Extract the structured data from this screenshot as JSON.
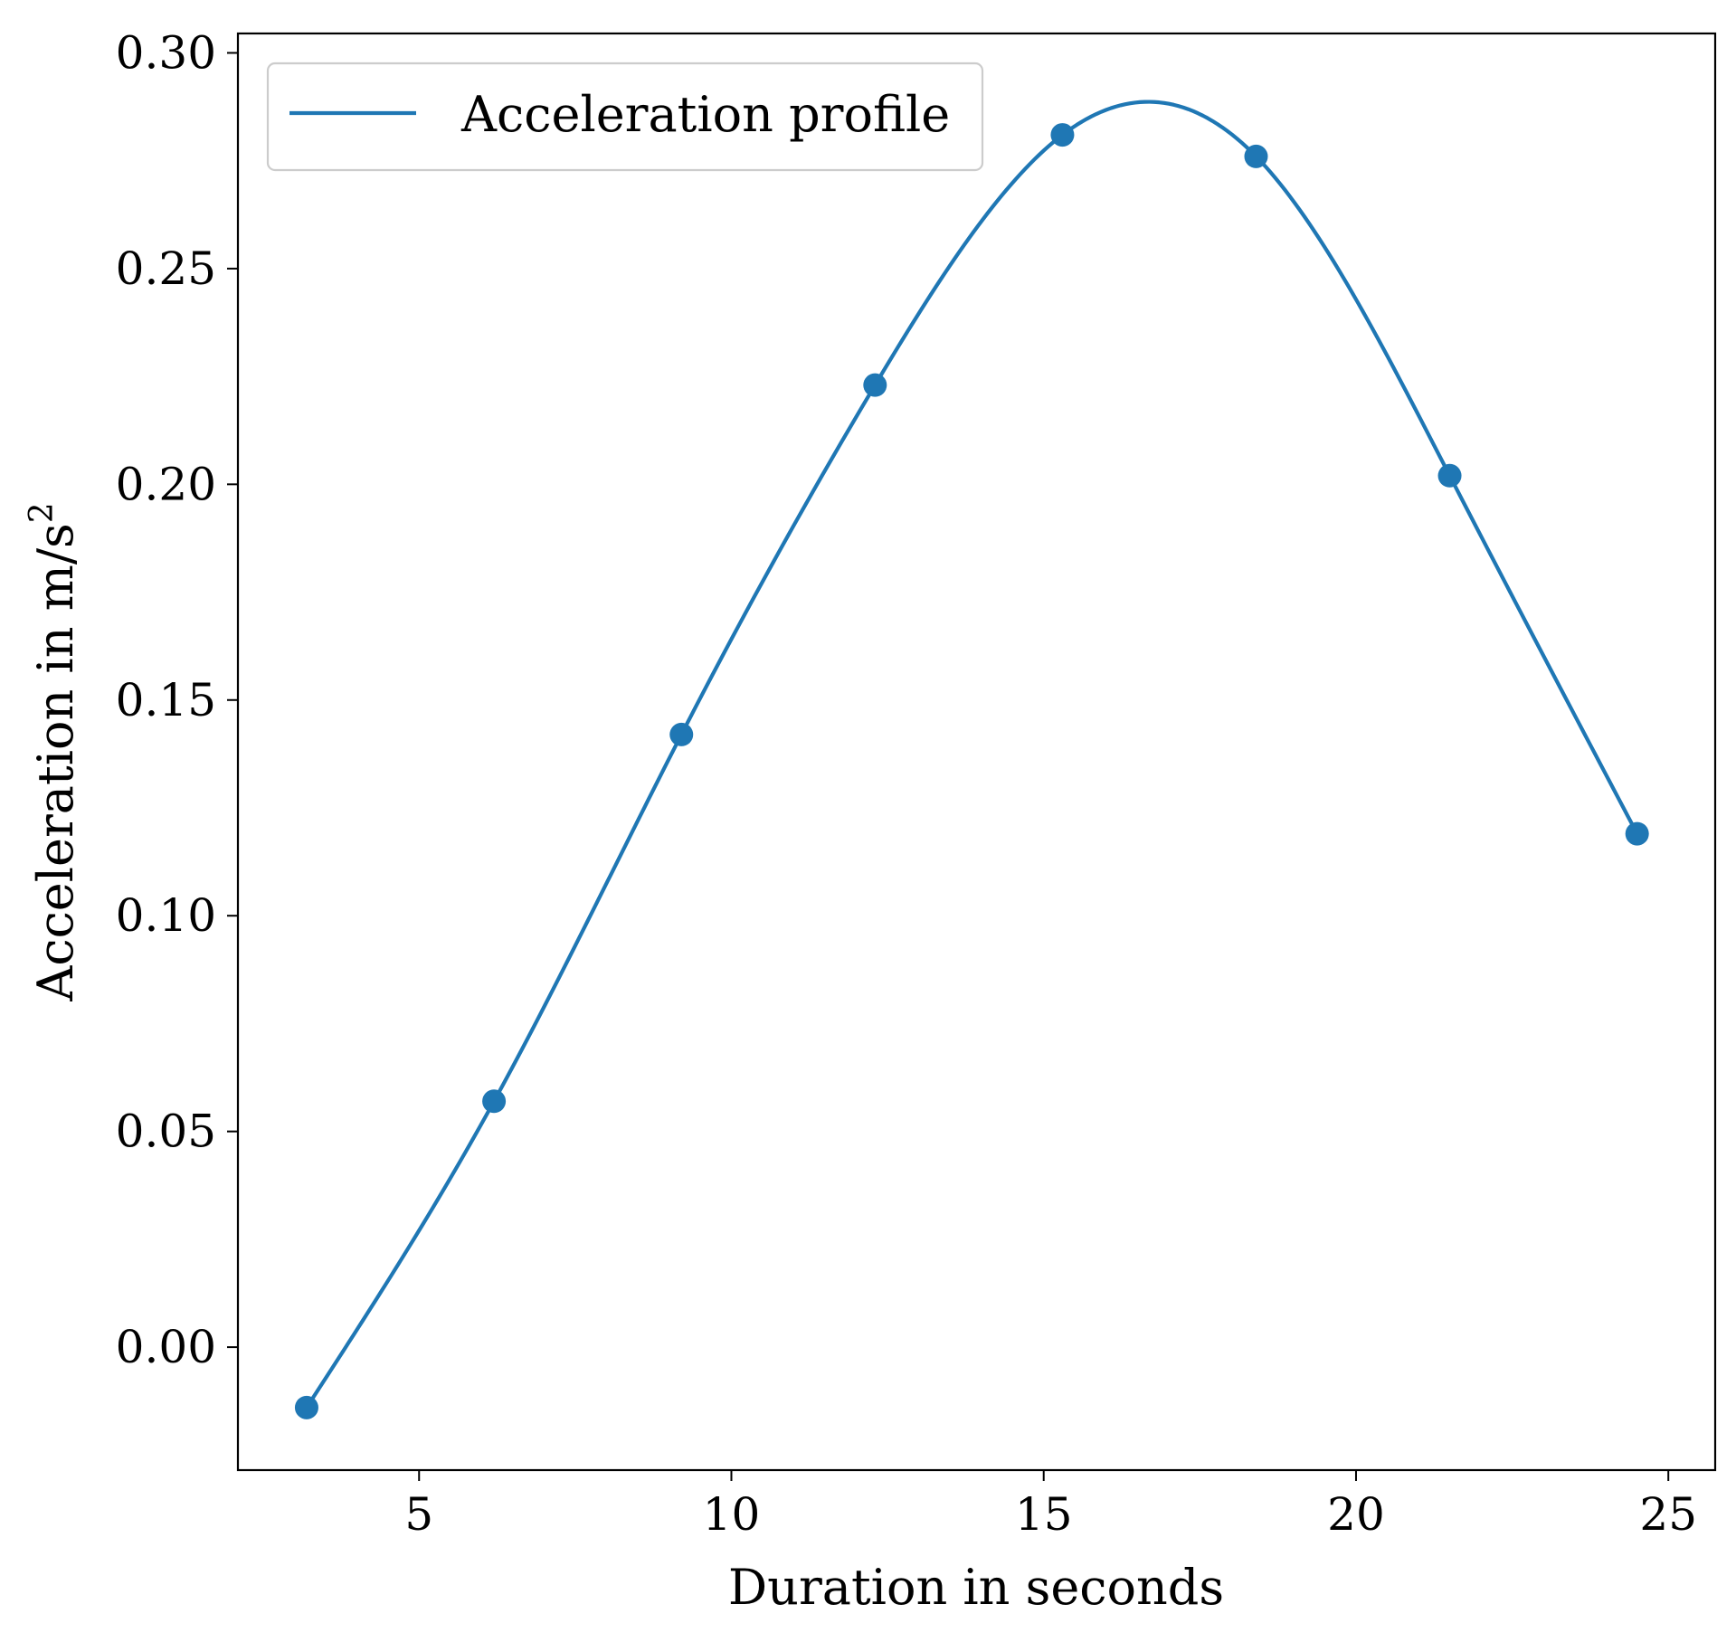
{
  "chart_data": {
    "type": "line",
    "xlabel": "Duration in seconds",
    "ylabel": "Acceleration in m/s",
    "ylabel_superscript": "2",
    "xlim": [
      2.1,
      25.75
    ],
    "ylim": [
      -0.0285,
      0.3045
    ],
    "xticks": [
      5,
      10,
      15,
      20,
      25
    ],
    "xtick_labels": [
      "5",
      "10",
      "15",
      "20",
      "25"
    ],
    "yticks": [
      0.0,
      0.05,
      0.1,
      0.15,
      0.2,
      0.25,
      0.3
    ],
    "ytick_labels": [
      "0.00",
      "0.05",
      "0.10",
      "0.15",
      "0.20",
      "0.25",
      "0.30"
    ],
    "grid": false,
    "legend": {
      "position": "top-left",
      "entries": [
        "Acceleration profile"
      ]
    },
    "color": "#1f77b4",
    "series": [
      {
        "name": "Acceleration profile",
        "x": [
          3.2,
          6.2,
          9.2,
          12.3,
          15.3,
          18.4,
          21.5,
          24.5
        ],
        "y": [
          -0.014,
          0.057,
          0.142,
          0.223,
          0.281,
          0.276,
          0.202,
          0.119
        ]
      }
    ]
  }
}
